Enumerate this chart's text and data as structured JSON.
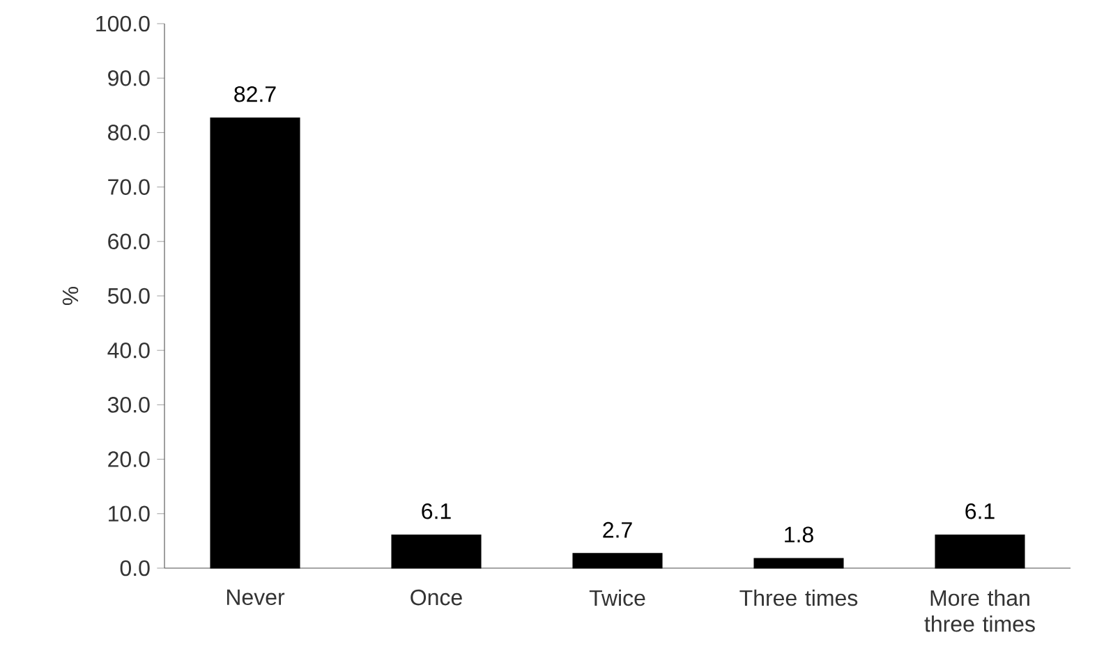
{
  "chart_data": {
    "type": "bar",
    "ylabel": "%",
    "categories": [
      "Never",
      "Once",
      "Twice",
      "Three times",
      "More than three times"
    ],
    "values": [
      82.7,
      6.1,
      2.7,
      1.8,
      6.1
    ],
    "color": "#000000",
    "ylim": [
      0,
      100
    ],
    "yticks": [
      {
        "value": 0,
        "label": "0.0"
      },
      {
        "value": 10,
        "label": "10.0"
      },
      {
        "value": 20,
        "label": "20.0"
      },
      {
        "value": 30,
        "label": "30.0"
      },
      {
        "value": 40,
        "label": "40.0"
      },
      {
        "value": 50,
        "label": "50.0"
      },
      {
        "value": 60,
        "label": "60.0"
      },
      {
        "value": 70,
        "label": "70.0"
      },
      {
        "value": 80,
        "label": "80.0"
      },
      {
        "value": 90,
        "label": "90.0"
      },
      {
        "value": 100,
        "label": "100.0"
      }
    ],
    "data_labels": true
  }
}
